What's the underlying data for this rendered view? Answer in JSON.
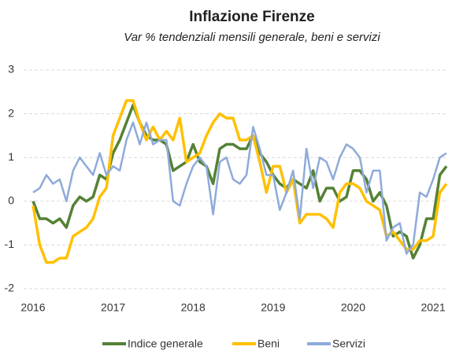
{
  "chart_data": {
    "type": "line",
    "title": "Inflazione Firenze",
    "subtitle": "Var % tendenziali mensili generale, beni e servizi",
    "categories": [
      "2016",
      null,
      null,
      null,
      null,
      null,
      null,
      null,
      null,
      null,
      null,
      null,
      "2017",
      null,
      null,
      null,
      null,
      null,
      null,
      null,
      null,
      null,
      null,
      null,
      "2018",
      null,
      null,
      null,
      null,
      null,
      null,
      null,
      null,
      null,
      null,
      null,
      "2019",
      null,
      null,
      null,
      null,
      null,
      null,
      null,
      null,
      null,
      null,
      null,
      "2020",
      null,
      null,
      null,
      null,
      null,
      null,
      null,
      null,
      null,
      null,
      null,
      "2021",
      null,
      null
    ],
    "series": [
      {
        "name": "Indice generale",
        "color": "#548235",
        "values": [
          0,
          -0.4,
          -0.4,
          -0.5,
          -0.4,
          -0.6,
          -0.1,
          0.1,
          0,
          0.1,
          0.6,
          0.5,
          1.1,
          1.4,
          1.8,
          2.2,
          1.8,
          1.5,
          1.4,
          1.4,
          1.3,
          0.7,
          0.8,
          0.9,
          1.3,
          0.9,
          0.8,
          0.4,
          1.2,
          1.3,
          1.3,
          1.2,
          1.2,
          1.5,
          1.1,
          0.9,
          0.6,
          0.4,
          0.3,
          0.5,
          0.4,
          0.3,
          0.7,
          0,
          0.3,
          0.3,
          0,
          0.1,
          0.7,
          0.7,
          0.5,
          0,
          0.2,
          -0.1,
          -0.8,
          -0.7,
          -0.8,
          -1.3,
          -1,
          -0.4,
          -0.4,
          0.6,
          0.8
        ]
      },
      {
        "name": "Beni",
        "color": "#ffc000",
        "values": [
          -0.1,
          -1,
          -1.4,
          -1.4,
          -1.3,
          -1.3,
          -0.8,
          -0.7,
          -0.6,
          -0.4,
          0.1,
          0.3,
          1.5,
          1.9,
          2.3,
          2.3,
          1.8,
          1.4,
          1.7,
          1.4,
          1.6,
          1.4,
          1.9,
          0.9,
          1,
          1.1,
          1.5,
          1.8,
          2,
          1.9,
          1.9,
          1.4,
          1.4,
          1.5,
          0.9,
          0.2,
          0.8,
          0.8,
          0.2,
          0.5,
          -0.5,
          -0.3,
          -0.3,
          -0.3,
          -0.4,
          -0.6,
          0.2,
          0.4,
          0.4,
          0.3,
          0,
          -0.1,
          -0.2,
          -0.8,
          -0.7,
          -0.9,
          -1.1,
          -1.1,
          -0.9,
          -0.9,
          -0.8,
          0.2,
          0.4
        ]
      },
      {
        "name": "Servizi",
        "color": "#8eaadb",
        "values": [
          0.2,
          0.3,
          0.6,
          0.4,
          0.5,
          0,
          0.7,
          1,
          0.8,
          0.6,
          1.1,
          0.6,
          0.8,
          0.7,
          1.4,
          1.8,
          1.3,
          1.8,
          1.3,
          1.4,
          1.4,
          0,
          -0.1,
          0.4,
          0.8,
          1,
          0.8,
          -0.3,
          0.9,
          1,
          0.5,
          0.4,
          0.6,
          1.7,
          1.2,
          0.6,
          0.6,
          -0.2,
          0.2,
          0.7,
          -0.4,
          1.2,
          0.3,
          1,
          0.9,
          0.5,
          1,
          1.3,
          1.2,
          1,
          0.2,
          0.7,
          0.7,
          -0.9,
          -0.6,
          -0.5,
          -1.2,
          -1,
          0.2,
          0.1,
          0.5,
          1,
          1.1
        ]
      }
    ],
    "ylim": [
      -2,
      3
    ],
    "yticks": [
      -2,
      -1,
      0,
      1,
      2,
      3
    ],
    "grid": true,
    "legend": "bottom"
  }
}
